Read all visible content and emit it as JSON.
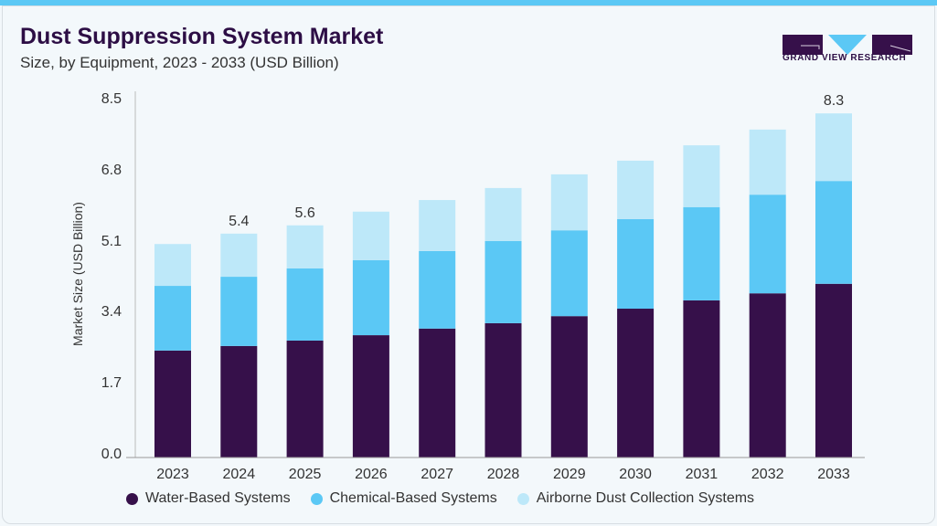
{
  "header": {
    "title": "Dust Suppression System Market",
    "subtitle": "Size, by Equipment, 2023 - 2033 (USD Billion)"
  },
  "logo": {
    "text": "GRAND VIEW RESEARCH"
  },
  "chart_data": {
    "type": "bar",
    "stacked": true,
    "title": "Dust Suppression System Market",
    "subtitle": "Size, by Equipment, 2023 - 2033 (USD Billion)",
    "xlabel": "",
    "ylabel": "Market Size (USD Billion)",
    "ylim": [
      0,
      8.5
    ],
    "yticks": [
      "0.0",
      "1.7",
      "3.4",
      "5.1",
      "6.8",
      "8.5"
    ],
    "grid": false,
    "legend_position": "bottom",
    "categories": [
      "2023",
      "2024",
      "2025",
      "2026",
      "2027",
      "2028",
      "2029",
      "2030",
      "2031",
      "2032",
      "2033"
    ],
    "series": [
      {
        "name": "Water-Based Systems",
        "color": "#36104a",
        "values": [
          2.58,
          2.69,
          2.82,
          2.95,
          3.11,
          3.24,
          3.41,
          3.59,
          3.79,
          3.96,
          4.19
        ]
      },
      {
        "name": "Chemical-Based Systems",
        "color": "#5bc8f5",
        "values": [
          1.56,
          1.67,
          1.74,
          1.81,
          1.87,
          1.98,
          2.07,
          2.16,
          2.25,
          2.38,
          2.48
        ]
      },
      {
        "name": "Airborne Dust Collection Systems",
        "color": "#bde8f9",
        "values": [
          1.01,
          1.04,
          1.04,
          1.17,
          1.23,
          1.28,
          1.35,
          1.41,
          1.49,
          1.57,
          1.63
        ]
      }
    ],
    "data_labels": [
      {
        "category": "2024",
        "text": "5.4"
      },
      {
        "category": "2025",
        "text": "5.6"
      },
      {
        "category": "2033",
        "text": "8.3"
      }
    ]
  }
}
